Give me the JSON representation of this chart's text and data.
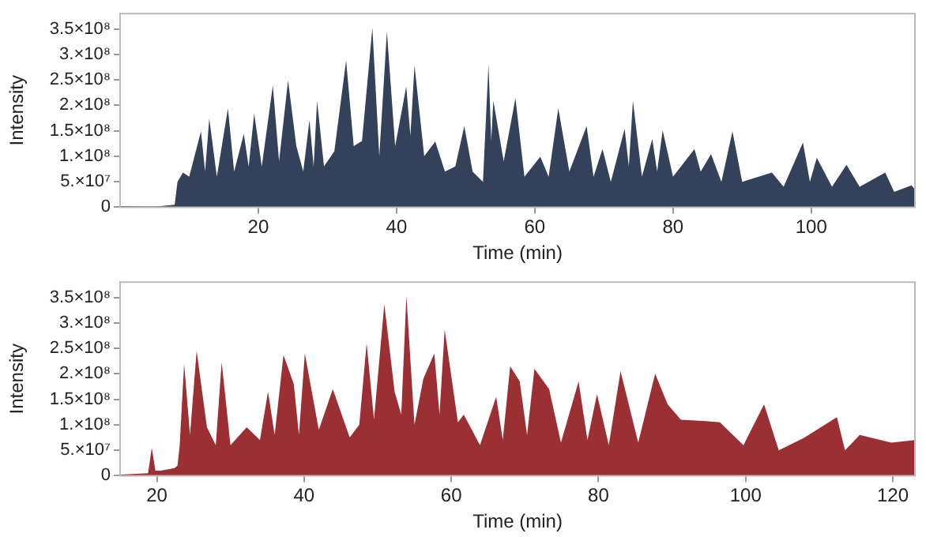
{
  "chart_data": [
    {
      "type": "area",
      "xlabel": "Time (min)",
      "ylabel": "Intensity",
      "xlim": [
        0,
        115
      ],
      "xticks": [
        20,
        40,
        60,
        80,
        100
      ],
      "ylim": [
        0,
        380000000.0
      ],
      "yticks": [
        0,
        {
          "value": 50000000.0,
          "label": "5.×10⁷"
        },
        {
          "value": 100000000.0,
          "label": "1.×10⁸"
        },
        {
          "value": 150000000.0,
          "label": "1.5×10⁸"
        },
        {
          "value": 200000000.0,
          "label": "2.×10⁸"
        },
        {
          "value": 250000000.0,
          "label": "2.5×10⁸"
        },
        {
          "value": 300000000.0,
          "label": "3.×10⁸"
        },
        {
          "value": 350000000.0,
          "label": "3.5×10⁸"
        }
      ],
      "grid": false,
      "legend": false,
      "series": [
        {
          "color": "#34415a",
          "x": [
            0,
            5,
            7.9,
            8.3,
            9.1,
            10,
            11.7,
            12.3,
            12.9,
            14,
            15.6,
            16.5,
            17.9,
            18.6,
            19.4,
            20.5,
            22.1,
            23,
            24.3,
            25.5,
            26.5,
            27.4,
            28,
            28.5,
            29.5,
            31,
            32.7,
            33.8,
            35,
            36.5,
            37.5,
            38.6,
            39.8,
            41.4,
            42,
            42.6,
            44,
            45.6,
            47,
            48.5,
            49.8,
            51,
            52.5,
            53.3,
            53.7,
            54,
            55.5,
            57.2,
            58.5,
            60.8,
            62,
            63.4,
            65,
            67.5,
            68.5,
            69.8,
            71,
            73,
            73.6,
            74.2,
            75.5,
            77,
            77.7,
            78.5,
            80,
            83.1,
            84,
            85.5,
            87,
            88.6,
            90,
            94.3,
            96,
            98.8,
            99.8,
            100.8,
            103,
            105.1,
            107,
            110.7,
            112,
            114.5,
            115
          ],
          "values": [
            2000000.0,
            1000000.0,
            5000000.0,
            50000000.0,
            68000000.0,
            60000000.0,
            149000000.0,
            70000000.0,
            174000000.0,
            60000000.0,
            194000000.0,
            70000000.0,
            144000000.0,
            80000000.0,
            184000000.0,
            80000000.0,
            239000000.0,
            90000000.0,
            249000000.0,
            120000000.0,
            70000000.0,
            171000000.0,
            80000000.0,
            209000000.0,
            80000000.0,
            110000000.0,
            288000000.0,
            120000000.0,
            130000000.0,
            352000000.0,
            100000000.0,
            345000000.0,
            120000000.0,
            237000000.0,
            140000000.0,
            278000000.0,
            100000000.0,
            129000000.0,
            70000000.0,
            80000000.0,
            159000000.0,
            70000000.0,
            50000000.0,
            280000000.0,
            130000000.0,
            209000000.0,
            90000000.0,
            214000000.0,
            60000000.0,
            99000000.0,
            60000000.0,
            194000000.0,
            70000000.0,
            159000000.0,
            60000000.0,
            114000000.0,
            50000000.0,
            154000000.0,
            80000000.0,
            209000000.0,
            60000000.0,
            134000000.0,
            70000000.0,
            151000000.0,
            60000000.0,
            114000000.0,
            70000000.0,
            104000000.0,
            50000000.0,
            149000000.0,
            50000000.0,
            68000000.0,
            40000000.0,
            127000000.0,
            50000000.0,
            97000000.0,
            40000000.0,
            83000000.0,
            40000000.0,
            68000000.0,
            30000000.0,
            43000000.0,
            35000000.0
          ]
        }
      ]
    },
    {
      "type": "area",
      "xlabel": "Time (min)",
      "ylabel": "Intensity",
      "xlim": [
        15,
        123
      ],
      "xticks": [
        20,
        40,
        60,
        80,
        100,
        120
      ],
      "ylim": [
        0,
        380000000.0
      ],
      "yticks": [
        0,
        {
          "value": 50000000.0,
          "label": "5.×10⁷"
        },
        {
          "value": 100000000.0,
          "label": "1.×10⁸"
        },
        {
          "value": 150000000.0,
          "label": "1.5×10⁸"
        },
        {
          "value": 200000000.0,
          "label": "2.×10⁸"
        },
        {
          "value": 250000000.0,
          "label": "2.5×10⁸"
        },
        {
          "value": 300000000.0,
          "label": "3.×10⁸"
        },
        {
          "value": 350000000.0,
          "label": "3.5×10⁸"
        }
      ],
      "grid": false,
      "legend": false,
      "series": [
        {
          "color": "#9b3034",
          "x": [
            15,
            18.8,
            19.3,
            19.8,
            20.5,
            22.4,
            22.8,
            23.1,
            23.7,
            24.5,
            25.4,
            26.8,
            28,
            28.8,
            30,
            32.2,
            34,
            35.1,
            36,
            37.2,
            38.6,
            39.3,
            40.1,
            42,
            43.9,
            46.2,
            47.5,
            48.5,
            49.5,
            50.9,
            52.3,
            53.2,
            53.9,
            55,
            56.2,
            57.7,
            58.4,
            59.1,
            60.9,
            61.7,
            63.9,
            66.1,
            67,
            68,
            69.3,
            70.3,
            71.3,
            73.3,
            74.9,
            77.3,
            78.5,
            79.8,
            81.4,
            83,
            85.4,
            87.7,
            89.4,
            91.2,
            94.6,
            96.5,
            99.7,
            102.5,
            104.5,
            108,
            112.4,
            113.5,
            115.5,
            119.8,
            123
          ],
          "values": [
            2000000.0,
            5000000.0,
            55000000.0,
            10000000.0,
            10000000.0,
            15000000.0,
            20000000.0,
            60000000.0,
            220000000.0,
            80000000.0,
            245000000.0,
            95000000.0,
            60000000.0,
            223000000.0,
            60000000.0,
            95000000.0,
            70000000.0,
            165000000.0,
            80000000.0,
            237000000.0,
            180000000.0,
            80000000.0,
            240000000.0,
            90000000.0,
            170000000.0,
            75000000.0,
            100000000.0,
            260000000.0,
            110000000.0,
            337000000.0,
            165000000.0,
            120000000.0,
            353000000.0,
            100000000.0,
            190000000.0,
            240000000.0,
            120000000.0,
            287000000.0,
            105000000.0,
            120000000.0,
            60000000.0,
            155000000.0,
            70000000.0,
            215000000.0,
            185000000.0,
            80000000.0,
            210000000.0,
            170000000.0,
            65000000.0,
            185000000.0,
            70000000.0,
            160000000.0,
            60000000.0,
            205000000.0,
            65000000.0,
            200000000.0,
            140000000.0,
            110000000.0,
            107000000.0,
            105000000.0,
            60000000.0,
            140000000.0,
            50000000.0,
            75000000.0,
            115000000.0,
            50000000.0,
            80000000.0,
            65000000.0,
            70000000.0
          ]
        }
      ]
    }
  ]
}
